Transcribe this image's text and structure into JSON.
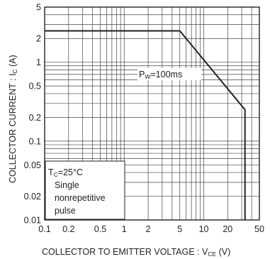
{
  "chart_data": {
    "type": "line",
    "title": "",
    "xscale": "log",
    "yscale": "log",
    "xlim": [
      0.1,
      50
    ],
    "ylim": [
      0.01,
      5
    ],
    "grid": true,
    "x_ticks": [
      0.1,
      0.2,
      0.5,
      1,
      2,
      5,
      10,
      20,
      50
    ],
    "x_tick_labels": [
      "0.1",
      "0.2",
      "0.5",
      "1",
      "2",
      "5",
      "10",
      "20",
      "50"
    ],
    "y_ticks": [
      0.01,
      0.02,
      0.05,
      0.1,
      0.2,
      0.5,
      1,
      2,
      5
    ],
    "y_tick_labels": [
      "0.01",
      "0.02",
      "0.05",
      "0.1",
      "0.2",
      "0.5",
      "1",
      "2",
      "5"
    ],
    "xlabel": {
      "main": "COLLECTOR  TO  EMITTER  VOLTAGE : V",
      "sub": "CE",
      "unit": " (V)"
    },
    "ylabel": {
      "main": "COLLECTOR  CURRENT : I",
      "sub": "C",
      "unit": " (A)"
    },
    "series": [
      {
        "label": {
          "main": "P",
          "sub": "W",
          "rest": "=100ms"
        },
        "x": [
          0.1,
          5,
          33,
          33
        ],
        "y": [
          2.5,
          2.5,
          0.25,
          0.01
        ]
      }
    ],
    "conditions": {
      "line1_main": "T",
      "line1_sub": "C",
      "line1_rest": "=25°C",
      "line2": "Single",
      "line3": "nonrepetitive",
      "line4": "pulse"
    }
  }
}
